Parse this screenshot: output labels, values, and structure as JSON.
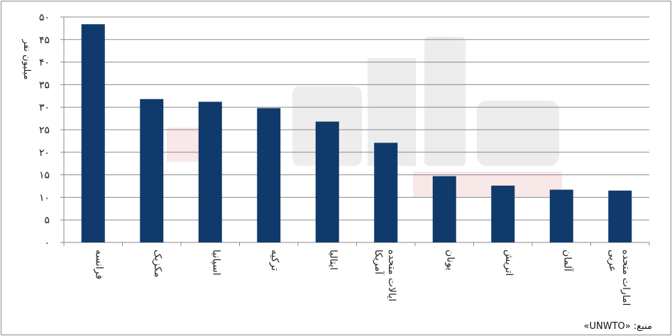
{
  "chart_data": {
    "type": "bar",
    "ylabel": "میلیون نفر",
    "ylim": [
      0,
      50
    ],
    "yticks": [
      0,
      5,
      10,
      15,
      20,
      25,
      30,
      35,
      40,
      45,
      50
    ],
    "ytick_labels": [
      "۰",
      "۵",
      "۱۰",
      "۱۵",
      "۲۰",
      "۲۵",
      "۳۰",
      "۳۵",
      "۴۰",
      "۴۵",
      "۵۰"
    ],
    "grid": true,
    "bar_color": "#0f3a6b",
    "categories": [
      "فرانسه",
      "مکزیک",
      "اسپانیا",
      "ترکیه",
      "ایتالیا",
      "ایالات متحده آمریکا",
      "یونان",
      "اتریش",
      "آلمان",
      "امارات متحده عربی"
    ],
    "category_lines": [
      [
        "فرانسه"
      ],
      [
        "مکزیک"
      ],
      [
        "اسپانیا"
      ],
      [
        "ترکیه"
      ],
      [
        "ایتالیا"
      ],
      [
        "ایالات متحده",
        "آمریکا"
      ],
      [
        "یونان"
      ],
      [
        "اتریش"
      ],
      [
        "آلمان"
      ],
      [
        "امارات متحده",
        "عربی"
      ]
    ],
    "values": [
      48.4,
      31.8,
      31.2,
      29.8,
      26.8,
      22.1,
      14.7,
      12.6,
      11.7,
      11.5
    ]
  },
  "source": "منبع: «UNWTO»"
}
